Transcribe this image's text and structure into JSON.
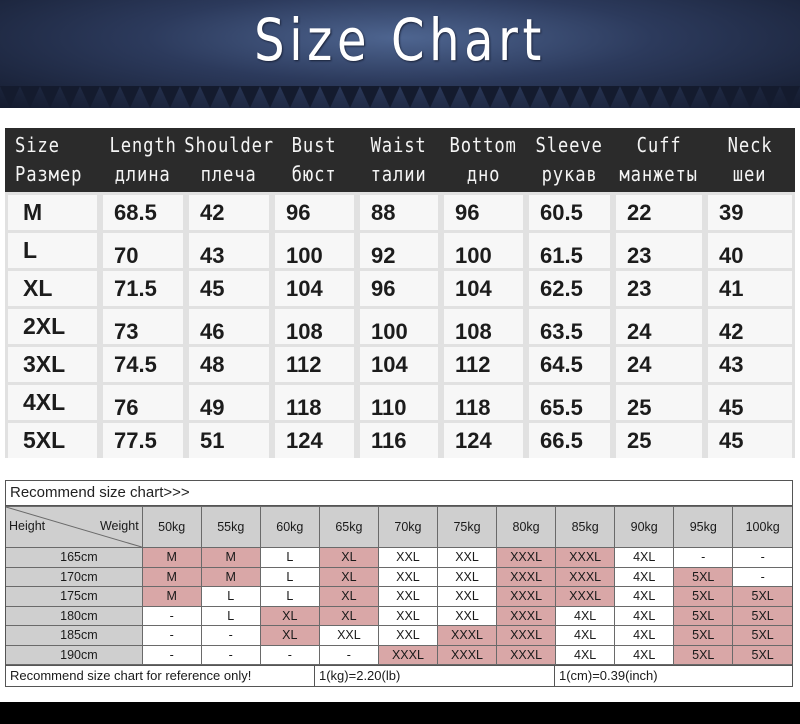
{
  "title": "Size Chart",
  "colors": {
    "banner": "#2c3a5c",
    "header_bg": "#2b2b2b",
    "pink": "#d9a7a7",
    "grey": "#cfcfcf"
  },
  "columns": [
    {
      "en": "Size",
      "ru": "Размер"
    },
    {
      "en": "Length",
      "ru": "длина"
    },
    {
      "en": "Shoulder",
      "ru": "плеча"
    },
    {
      "en": "Bust",
      "ru": "бюст"
    },
    {
      "en": "Waist",
      "ru": "талии"
    },
    {
      "en": "Bottom",
      "ru": "дно"
    },
    {
      "en": "Sleeve",
      "ru": "рукав"
    },
    {
      "en": "Cuff",
      "ru": "манжеты"
    },
    {
      "en": "Neck",
      "ru": "шеи"
    }
  ],
  "rows": [
    [
      "M",
      "68.5",
      "42",
      "96",
      "88",
      "96",
      "60.5",
      "22",
      "39"
    ],
    [
      "L",
      "70",
      "43",
      "100",
      "92",
      "100",
      "61.5",
      "23",
      "40"
    ],
    [
      "XL",
      "71.5",
      "45",
      "104",
      "96",
      "104",
      "62.5",
      "23",
      "41"
    ],
    [
      "2XL",
      "73",
      "46",
      "108",
      "100",
      "108",
      "63.5",
      "24",
      "42"
    ],
    [
      "3XL",
      "74.5",
      "48",
      "112",
      "104",
      "112",
      "64.5",
      "24",
      "43"
    ],
    [
      "4XL",
      "76",
      "49",
      "118",
      "110",
      "118",
      "65.5",
      "25",
      "45"
    ],
    [
      "5XL",
      "77.5",
      "51",
      "124",
      "116",
      "124",
      "66.5",
      "25",
      "45"
    ]
  ],
  "recommend": {
    "title": "Recommend size chart>>>",
    "height_label": "Height",
    "weight_label": "Weight",
    "weights": [
      "50kg",
      "55kg",
      "60kg",
      "65kg",
      "70kg",
      "75kg",
      "80kg",
      "85kg",
      "90kg",
      "95kg",
      "100kg"
    ],
    "rows": [
      {
        "height": "165cm",
        "cells": [
          "M",
          "M",
          "L",
          "XL",
          "XXL",
          "XXL",
          "XXXL",
          "XXXL",
          "4XL",
          "-",
          "-"
        ]
      },
      {
        "height": "170cm",
        "cells": [
          "M",
          "M",
          "L",
          "XL",
          "XXL",
          "XXL",
          "XXXL",
          "XXXL",
          "4XL",
          "5XL",
          "-"
        ]
      },
      {
        "height": "175cm",
        "cells": [
          "M",
          "L",
          "L",
          "XL",
          "XXL",
          "XXL",
          "XXXL",
          "XXXL",
          "4XL",
          "5XL",
          "5XL"
        ]
      },
      {
        "height": "180cm",
        "cells": [
          "-",
          "L",
          "XL",
          "XL",
          "XXL",
          "XXL",
          "XXXL",
          "4XL",
          "4XL",
          "5XL",
          "5XL"
        ]
      },
      {
        "height": "185cm",
        "cells": [
          "-",
          "-",
          "XL",
          "XXL",
          "XXL",
          "XXXL",
          "XXXL",
          "4XL",
          "4XL",
          "5XL",
          "5XL"
        ]
      },
      {
        "height": "190cm",
        "cells": [
          "-",
          "-",
          "-",
          "-",
          "XXXL",
          "XXXL",
          "XXXL",
          "4XL",
          "4XL",
          "5XL",
          "5XL"
        ]
      }
    ],
    "notes": [
      "Recommend size chart for reference only!",
      "1(kg)=2.20(lb)",
      "1(cm)=0.39(inch)"
    ]
  }
}
